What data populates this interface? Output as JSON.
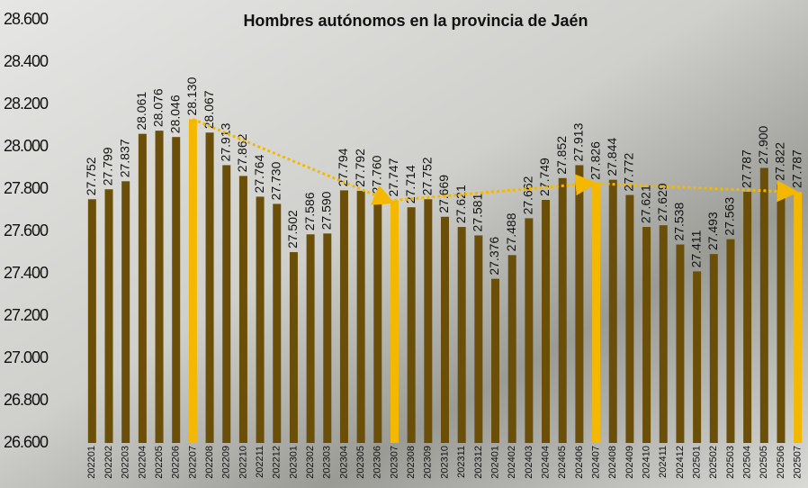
{
  "chart_data": {
    "type": "bar",
    "title": "Hombres autónomos en la provincia de Jaén",
    "categories": [
      "202201",
      "202202",
      "202203",
      "202204",
      "202205",
      "202206",
      "202207",
      "202208",
      "202209",
      "202210",
      "202211",
      "202212",
      "202301",
      "202302",
      "202303",
      "202304",
      "202305",
      "202306",
      "202307",
      "202308",
      "202309",
      "202310",
      "202311",
      "202312",
      "202401",
      "202402",
      "202403",
      "202404",
      "202405",
      "202406",
      "202407",
      "202408",
      "202409",
      "202410",
      "202411",
      "202412",
      "202501",
      "202502",
      "202503",
      "202504",
      "202505",
      "202506",
      "202507"
    ],
    "values": [
      27752,
      27799,
      27837,
      28061,
      28076,
      28046,
      28130,
      28067,
      27913,
      27862,
      27764,
      27730,
      27502,
      27586,
      27590,
      27794,
      27792,
      27760,
      27747,
      27714,
      27752,
      27669,
      27621,
      27581,
      27376,
      27488,
      27662,
      27749,
      27852,
      27913,
      27826,
      27844,
      27772,
      27621,
      27629,
      27538,
      27411,
      27493,
      27563,
      27787,
      27900,
      27822,
      27787
    ],
    "value_labels": [
      "27.752",
      "27.799",
      "27.837",
      "28.061",
      "28.076",
      "28.046",
      "28.130",
      "28.067",
      "27.913",
      "27.862",
      "27.764",
      "27.730",
      "27.502",
      "27.586",
      "27.590",
      "27.794",
      "27.792",
      "27.760",
      "27.747",
      "27.714",
      "27.752",
      "27.669",
      "27.621",
      "27.581",
      "27.376",
      "27.488",
      "27.662",
      "27.749",
      "27.852",
      "27.913",
      "27.826",
      "27.844",
      "27.772",
      "27.621",
      "27.629",
      "27.538",
      "27.411",
      "27.493",
      "27.563",
      "27.787",
      "27.900",
      "27.822",
      "27.787"
    ],
    "colors": [
      "#6b4f08",
      "#6b4f08",
      "#6b4f08",
      "#6b4f08",
      "#6b4f08",
      "#6b4f08",
      "#f5b800",
      "#6b4f08",
      "#6b4f08",
      "#6b4f08",
      "#6b4f08",
      "#6b4f08",
      "#6b4f08",
      "#6b4f08",
      "#6b4f08",
      "#6b4f08",
      "#6b4f08",
      "#6b4f08",
      "#f5b800",
      "#6b4f08",
      "#6b4f08",
      "#6b4f08",
      "#6b4f08",
      "#6b4f08",
      "#6b4f08",
      "#6b4f08",
      "#6b4f08",
      "#6b4f08",
      "#6b4f08",
      "#6b4f08",
      "#f5b800",
      "#6b4f08",
      "#6b4f08",
      "#6b4f08",
      "#6b4f08",
      "#6b4f08",
      "#6b4f08",
      "#6b4f08",
      "#6b4f08",
      "#6b4f08",
      "#6b4f08",
      "#6b4f08",
      "#f5b800"
    ],
    "trend_color": "#f5b800",
    "ylim": [
      26600,
      28600
    ],
    "yticks": [
      {
        "value": 26600,
        "label": "26.600"
      },
      {
        "value": 26800,
        "label": "26.800"
      },
      {
        "value": 27000,
        "label": "27.000"
      },
      {
        "value": 27200,
        "label": "27.200"
      },
      {
        "value": 27400,
        "label": "27.400"
      },
      {
        "value": 27600,
        "label": "27.600"
      },
      {
        "value": 27800,
        "label": "27.800"
      },
      {
        "value": 28000,
        "label": "28.000"
      },
      {
        "value": 28200,
        "label": "28.200"
      },
      {
        "value": 28400,
        "label": "28.400"
      },
      {
        "value": 28600,
        "label": "28.600"
      }
    ]
  }
}
